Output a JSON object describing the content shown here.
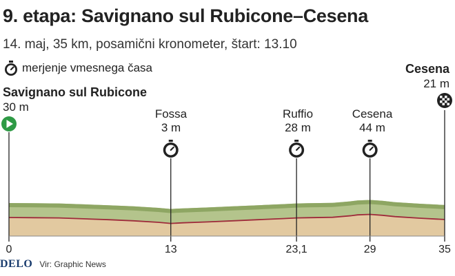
{
  "header": {
    "title": "9. etapa: Savignano sul Rubicone–Cesena",
    "subtitle": "14. maj, 35 km, posamični kronometer, štart: 13.10"
  },
  "legend": {
    "icon": "stopwatch-icon",
    "label": "merjenje vmesnega časa"
  },
  "footer": {
    "brand": "DELO",
    "source": "Vir: Graphic News"
  },
  "colors": {
    "terrain_top": "#8ea663",
    "terrain_upper": "#b4c48c",
    "terrain_lower": "#e2c9a0",
    "route_line": "#9e2a3a",
    "start_marker": "#2e9a45"
  },
  "chart_data": {
    "type": "area",
    "xlim": [
      0,
      35
    ],
    "x_ticks": [
      {
        "value": 0,
        "label": "0"
      },
      {
        "value": 13,
        "label": "13"
      },
      {
        "value": 23.1,
        "label": "23,1"
      },
      {
        "value": 29,
        "label": "29"
      },
      {
        "value": 35,
        "label": "35"
      }
    ],
    "waypoints": [
      {
        "km": 0,
        "name": "Savignano sul Rubicone",
        "elevation": "30 m",
        "marker": "start-icon"
      },
      {
        "km": 13,
        "name": "Fossa",
        "elevation": "3 m",
        "marker": "stopwatch-icon"
      },
      {
        "km": 23.1,
        "name": "Ruffio",
        "elevation": "28 m",
        "marker": "stopwatch-icon"
      },
      {
        "km": 29,
        "name": "Cesena",
        "elevation": "44 m",
        "marker": "stopwatch-icon"
      },
      {
        "km": 35,
        "name": "Cesena",
        "elevation": "21 m",
        "marker": "finish-flag-icon"
      }
    ],
    "profile_x": [
      0,
      2,
      4,
      6,
      8,
      10,
      12,
      13,
      14,
      16,
      18,
      20,
      22,
      23.1,
      24,
      26,
      27.5,
      28,
      29,
      30,
      31,
      33,
      35
    ],
    "profile_y": [
      30,
      29,
      28,
      24,
      20,
      15,
      8,
      3,
      6,
      10,
      15,
      20,
      25,
      28,
      29,
      31,
      38,
      42,
      44,
      40,
      34,
      27,
      21
    ],
    "ylim": [
      0,
      100
    ]
  }
}
